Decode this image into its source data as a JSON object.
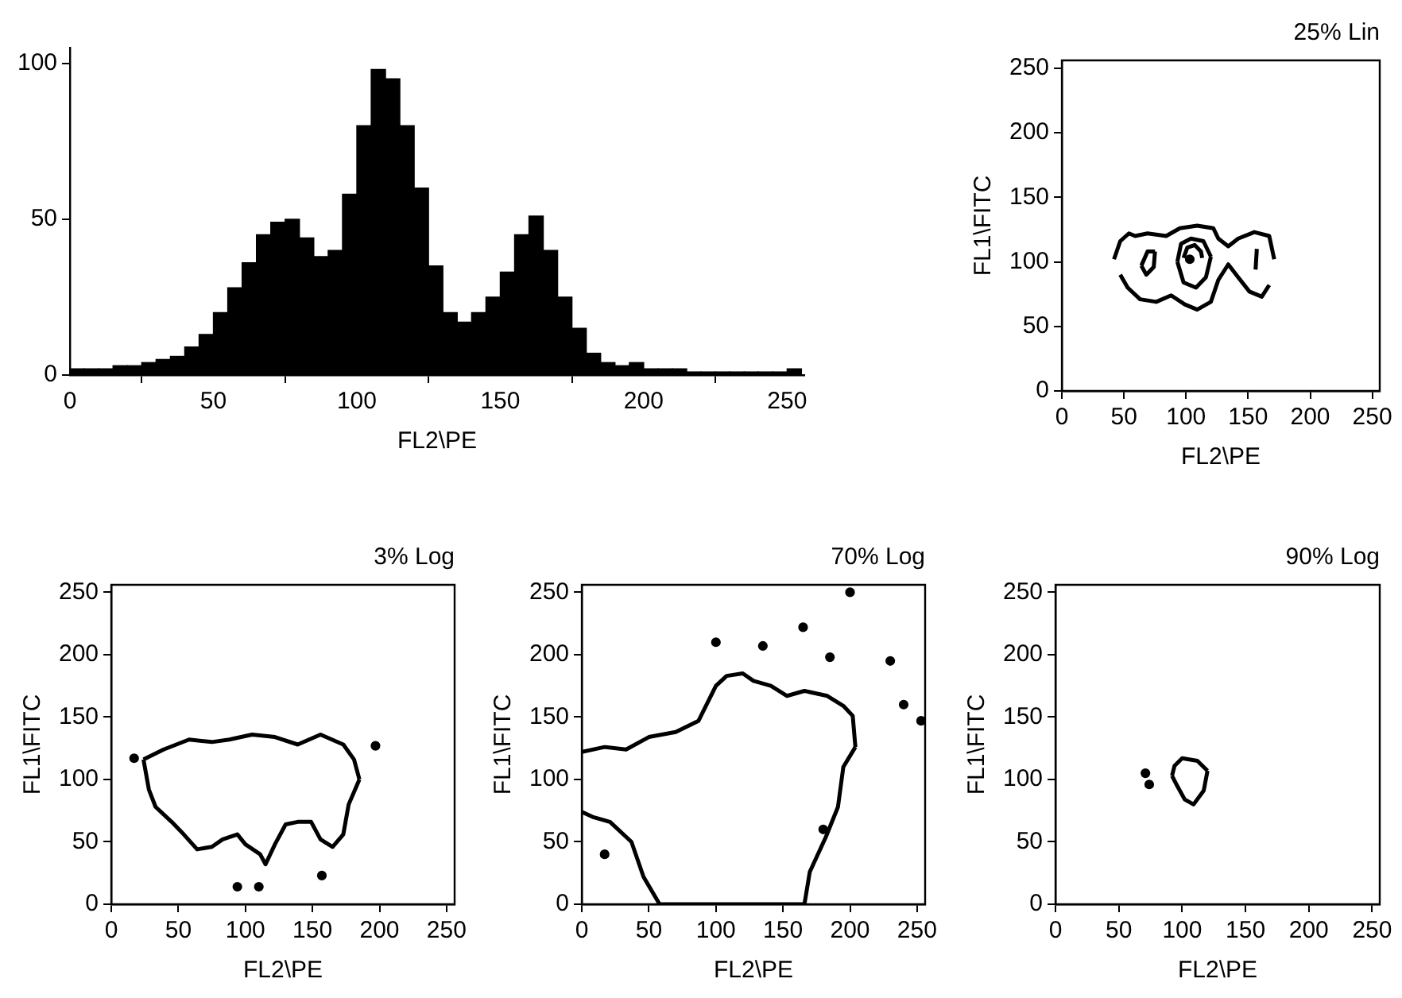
{
  "chart_data": [
    {
      "type": "histogram",
      "xlabel": "FL2\\PE",
      "bins": [
        0,
        5,
        10,
        15,
        20,
        25,
        30,
        35,
        40,
        45,
        50,
        55,
        60,
        65,
        70,
        75,
        80,
        85,
        90,
        95,
        100,
        105,
        110,
        115,
        120,
        125,
        130,
        135,
        140,
        145,
        150,
        155,
        160,
        165,
        170,
        175,
        180,
        185,
        190,
        195,
        200,
        205,
        210,
        215,
        220,
        225,
        230,
        235,
        240,
        245,
        250,
        255
      ],
      "values": [
        2,
        2,
        2,
        3,
        3,
        4,
        5,
        6,
        9,
        13,
        20,
        28,
        36,
        45,
        49,
        50,
        44,
        38,
        40,
        58,
        80,
        98,
        95,
        80,
        60,
        35,
        20,
        17,
        20,
        25,
        33,
        45,
        51,
        40,
        25,
        15,
        7,
        4,
        3,
        4,
        2,
        2,
        2,
        1,
        1,
        1,
        1,
        1,
        1,
        1,
        2
      ],
      "color": "#000000",
      "xlim": [
        0,
        256
      ],
      "xticks": [
        0,
        50,
        100,
        150,
        200,
        250
      ],
      "ylim": [
        0,
        105
      ],
      "yticks": [
        0,
        50,
        100
      ]
    },
    {
      "type": "line",
      "title": "25% Lin",
      "xlabel": "FL2\\PE",
      "ylabel": "FL1\\FITC",
      "xlim": [
        0,
        256
      ],
      "xticks": [
        0,
        50,
        100,
        150,
        200,
        250
      ],
      "ylim": [
        0,
        256
      ],
      "yticks": [
        0,
        50,
        100,
        150,
        200,
        250
      ],
      "series": [
        {
          "color": "#000000",
          "x": [
            42,
            47,
            54,
            59,
            69,
            84,
            95,
            109,
            122,
            126,
            134,
            142,
            155,
            167,
            171
          ],
          "values": [
            102,
            116,
            122,
            120,
            122,
            120,
            126,
            128,
            126,
            118,
            112,
            118,
            123,
            120,
            102
          ]
        },
        {
          "color": "#000000",
          "x": [
            47,
            53,
            63,
            76,
            88,
            99,
            109,
            120,
            126,
            134,
            142,
            151,
            161,
            167
          ],
          "values": [
            90,
            80,
            71,
            69,
            74,
            67,
            63,
            69,
            86,
            98,
            88,
            77,
            73,
            82
          ]
        },
        {
          "color": "#000000",
          "x": [
            93,
            96,
            104,
            114,
            120
          ],
          "values": [
            100,
            114,
            118,
            116,
            104
          ]
        },
        {
          "color": "#000000",
          "x": [
            93,
            98,
            108,
            116,
            120
          ],
          "values": [
            100,
            84,
            80,
            88,
            104
          ]
        },
        {
          "color": "#000000",
          "x": [
            98,
            101,
            107,
            112,
            113
          ],
          "values": [
            103,
            111,
            113,
            108,
            103
          ]
        },
        {
          "type": "scatter",
          "color": "#000000",
          "x": [
            103
          ],
          "values": [
            102
          ]
        },
        {
          "color": "#000000",
          "x": [
            64,
            69,
            75
          ],
          "values": [
            97,
            108,
            108
          ]
        },
        {
          "color": "#000000",
          "x": [
            64,
            68,
            74,
            75
          ],
          "values": [
            97,
            90,
            96,
            108
          ]
        },
        {
          "color": "#000000",
          "x": [
            156,
            157
          ],
          "values": [
            94,
            110
          ]
        }
      ]
    },
    {
      "type": "line",
      "title": "3% Log",
      "xlabel": "FL2\\PE",
      "ylabel": "FL1\\FITC",
      "xlim": [
        0,
        256
      ],
      "xticks": [
        0,
        50,
        100,
        150,
        200,
        250
      ],
      "ylim": [
        0,
        256
      ],
      "yticks": [
        0,
        50,
        100,
        150,
        200,
        250
      ],
      "series": [
        {
          "color": "#000000",
          "x": [
            24,
            39,
            58,
            75,
            88,
            105,
            122,
            139,
            156,
            173,
            181,
            185
          ],
          "values": [
            116,
            124,
            132,
            130,
            132,
            136,
            134,
            128,
            136,
            128,
            116,
            100
          ]
        },
        {
          "color": "#000000",
          "x": [
            24,
            26,
            28,
            33,
            45,
            54,
            64,
            75,
            83,
            94,
            100,
            111,
            115,
            122,
            130,
            139,
            149,
            156,
            165,
            173,
            177,
            185
          ],
          "values": [
            116,
            104,
            92,
            78,
            66,
            56,
            44,
            46,
            52,
            56,
            48,
            40,
            32,
            48,
            64,
            66,
            66,
            52,
            46,
            56,
            80,
            100
          ]
        },
        {
          "type": "scatter",
          "color": "#000000",
          "x": [
            17,
            197,
            94,
            110,
            157
          ],
          "values": [
            117,
            127,
            14,
            14,
            23
          ]
        }
      ]
    },
    {
      "type": "line",
      "title": "70% Log",
      "xlabel": "FL2\\PE",
      "ylabel": "FL1\\FITC",
      "xlim": [
        0,
        256
      ],
      "xticks": [
        0,
        50,
        100,
        150,
        200,
        250
      ],
      "ylim": [
        0,
        256
      ],
      "yticks": [
        0,
        50,
        100,
        150,
        200,
        250
      ],
      "series": [
        {
          "color": "#000000",
          "x": [
            0,
            17,
            33,
            50,
            70,
            87,
            100,
            108,
            120,
            128,
            141,
            153,
            166,
            183,
            195,
            202,
            204
          ],
          "values": [
            122,
            126,
            124,
            134,
            138,
            147,
            175,
            183,
            185,
            179,
            175,
            167,
            171,
            167,
            159,
            151,
            126
          ]
        },
        {
          "color": "#000000",
          "x": [
            0,
            8,
            21,
            37,
            46,
            58,
            166,
            170,
            182,
            191,
            195,
            204
          ],
          "values": [
            74,
            70,
            66,
            50,
            22,
            0,
            0,
            26,
            54,
            78,
            110,
            126
          ]
        },
        {
          "type": "scatter",
          "color": "#000000",
          "x": [
            135,
            185,
            165,
            200,
            230,
            240,
            253,
            180,
            17,
            100
          ],
          "values": [
            207,
            198,
            222,
            250,
            195,
            160,
            147,
            60,
            40,
            210
          ]
        }
      ]
    },
    {
      "type": "line",
      "title": "90% Log",
      "xlabel": "FL2\\PE",
      "ylabel": "FL1\\FITC",
      "xlim": [
        0,
        256
      ],
      "xticks": [
        0,
        50,
        100,
        150,
        200,
        250
      ],
      "ylim": [
        0,
        256
      ],
      "yticks": [
        0,
        50,
        100,
        150,
        200,
        250
      ],
      "series": [
        {
          "color": "#000000",
          "x": [
            92,
            94,
            100,
            112,
            120
          ],
          "values": [
            103,
            111,
            117,
            115,
            107
          ]
        },
        {
          "color": "#000000",
          "x": [
            92,
            96,
            102,
            109,
            117,
            120
          ],
          "values": [
            103,
            95,
            84,
            80,
            91,
            107
          ]
        },
        {
          "type": "scatter",
          "color": "#000000",
          "x": [
            71,
            74
          ],
          "values": [
            105,
            96
          ]
        }
      ]
    }
  ]
}
